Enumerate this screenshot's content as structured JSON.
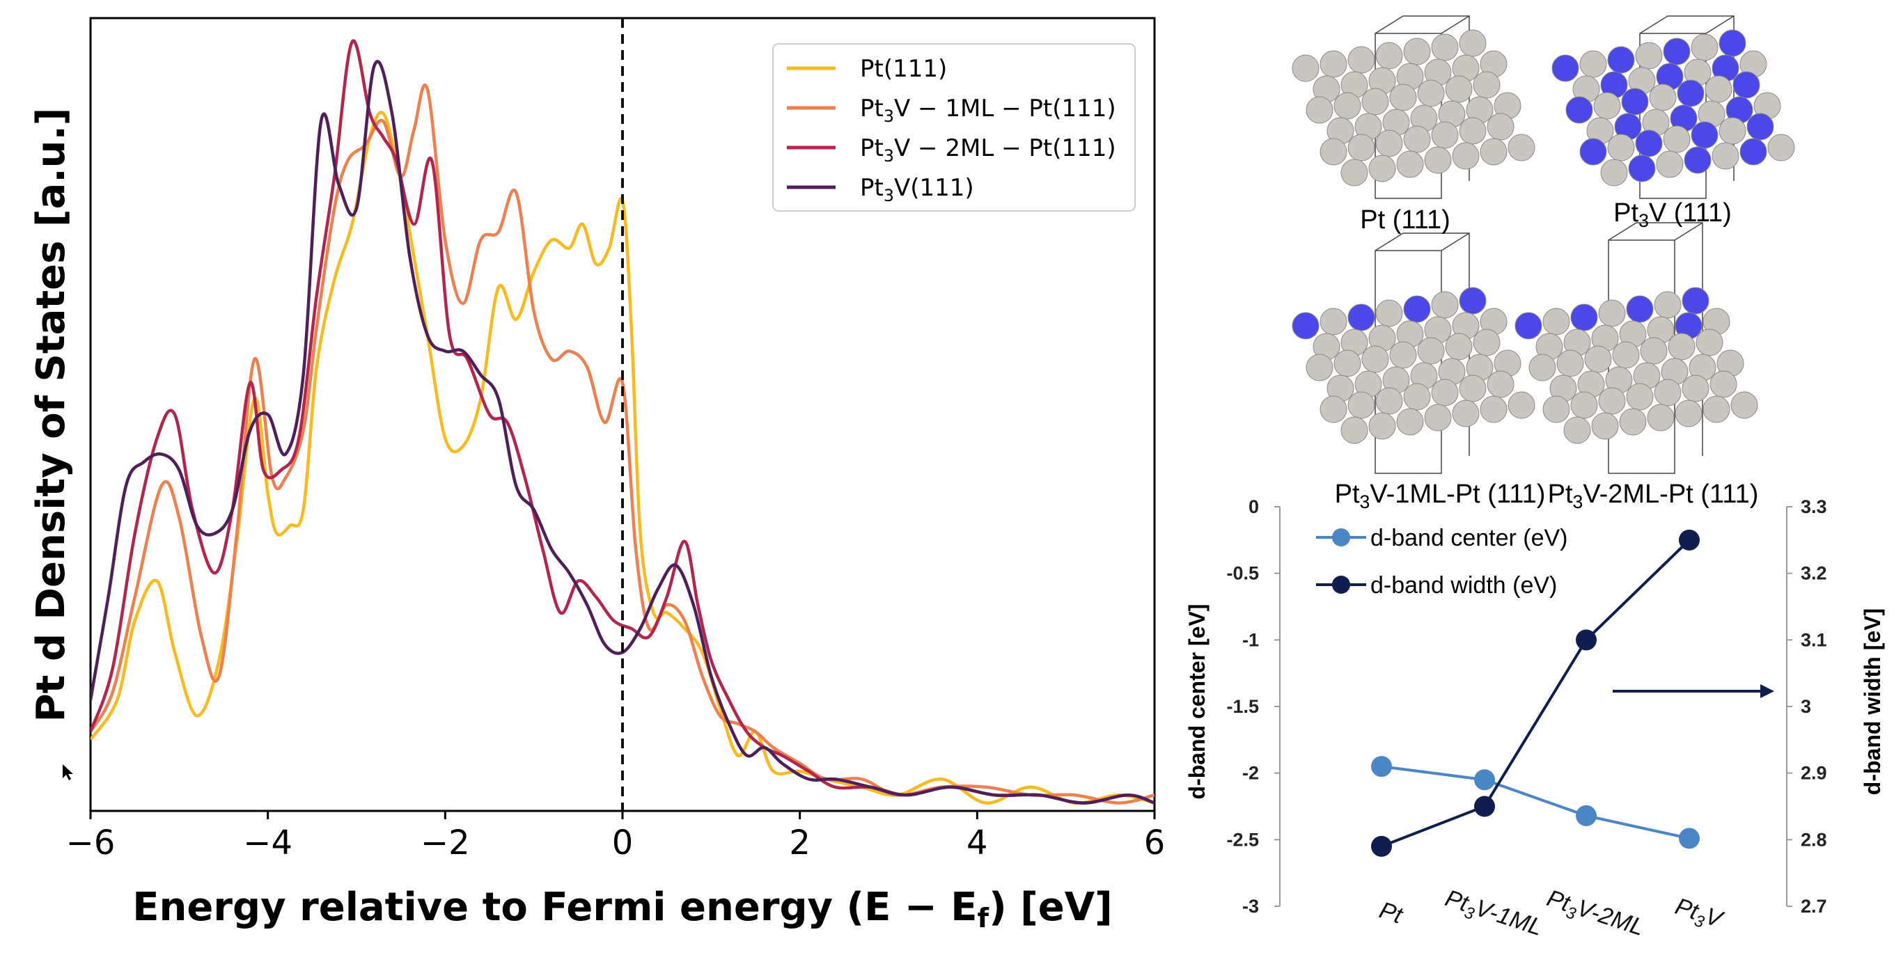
{
  "chart_data": [
    {
      "type": "line",
      "xlabel": "Energy relative to Fermi energy (E − Ef) [eV]",
      "xlabel_main": "Energy relative to Fermi energy (E − E",
      "xlabel_sub": "f",
      "xlabel_tail": ") [eV]",
      "ylabel": "Pt d Density of States [a.u.]",
      "xlim": [
        -6,
        6
      ],
      "ylim": [
        0,
        1
      ],
      "x_ticks": [
        -6,
        -4,
        -2,
        0,
        2,
        4,
        6
      ],
      "x_tick_labels": [
        "−6",
        "−4",
        "−2",
        "0",
        "2",
        "4",
        "6"
      ],
      "fermi_line_x": 0,
      "legend_position": "top-right",
      "series": [
        {
          "name": "Pt(111)",
          "legend_parts": [
            "Pt(111)"
          ],
          "color": "#F9BA20",
          "points": [
            [
              -6,
              0.09
            ],
            [
              -5.7,
              0.14
            ],
            [
              -5.5,
              0.24
            ],
            [
              -5.25,
              0.29
            ],
            [
              -5.05,
              0.2
            ],
            [
              -4.8,
              0.12
            ],
            [
              -4.55,
              0.19
            ],
            [
              -4.35,
              0.34
            ],
            [
              -4.15,
              0.52
            ],
            [
              -4,
              0.4
            ],
            [
              -3.9,
              0.35
            ],
            [
              -3.75,
              0.36
            ],
            [
              -3.6,
              0.38
            ],
            [
              -3.45,
              0.56
            ],
            [
              -3.25,
              0.67
            ],
            [
              -3.05,
              0.74
            ],
            [
              -2.85,
              0.85
            ],
            [
              -2.7,
              0.88
            ],
            [
              -2.55,
              0.82
            ],
            [
              -2.4,
              0.73
            ],
            [
              -2.2,
              0.6
            ],
            [
              -2,
              0.47
            ],
            [
              -1.8,
              0.46
            ],
            [
              -1.6,
              0.52
            ],
            [
              -1.4,
              0.66
            ],
            [
              -1.2,
              0.62
            ],
            [
              -1,
              0.68
            ],
            [
              -0.8,
              0.72
            ],
            [
              -0.6,
              0.71
            ],
            [
              -0.45,
              0.74
            ],
            [
              -0.3,
              0.69
            ],
            [
              -0.15,
              0.71
            ],
            [
              0,
              0.77
            ],
            [
              0.1,
              0.61
            ],
            [
              0.2,
              0.35
            ],
            [
              0.35,
              0.25
            ],
            [
              0.5,
              0.25
            ],
            [
              0.7,
              0.23
            ],
            [
              0.9,
              0.2
            ],
            [
              1.1,
              0.13
            ],
            [
              1.3,
              0.07
            ],
            [
              1.5,
              0.1
            ],
            [
              1.7,
              0.05
            ],
            [
              2,
              0.05
            ],
            [
              2.3,
              0.04
            ],
            [
              2.7,
              0.03
            ],
            [
              3.1,
              0.02
            ],
            [
              3.6,
              0.04
            ],
            [
              4.1,
              0.01
            ],
            [
              4.6,
              0.03
            ],
            [
              5.1,
              0.01
            ],
            [
              5.6,
              0.02
            ],
            [
              6,
              0.01
            ]
          ]
        },
        {
          "name": "Pt3V − 1ML − Pt(111)",
          "legend_parts": [
            "Pt",
            "3",
            "V − 1ML − Pt(111)"
          ],
          "color": "#EE7F4F",
          "points": [
            [
              -6,
              0.1
            ],
            [
              -5.75,
              0.15
            ],
            [
              -5.5,
              0.27
            ],
            [
              -5.2,
              0.41
            ],
            [
              -5,
              0.37
            ],
            [
              -4.75,
              0.22
            ],
            [
              -4.55,
              0.17
            ],
            [
              -4.35,
              0.35
            ],
            [
              -4.15,
              0.57
            ],
            [
              -3.95,
              0.42
            ],
            [
              -3.8,
              0.42
            ],
            [
              -3.6,
              0.48
            ],
            [
              -3.45,
              0.61
            ],
            [
              -3.25,
              0.76
            ],
            [
              -3.1,
              0.82
            ],
            [
              -2.9,
              0.84
            ],
            [
              -2.7,
              0.87
            ],
            [
              -2.5,
              0.8
            ],
            [
              -2.35,
              0.86
            ],
            [
              -2.2,
              0.91
            ],
            [
              -2,
              0.72
            ],
            [
              -1.8,
              0.64
            ],
            [
              -1.6,
              0.72
            ],
            [
              -1.4,
              0.73
            ],
            [
              -1.2,
              0.78
            ],
            [
              -1,
              0.63
            ],
            [
              -0.8,
              0.57
            ],
            [
              -0.6,
              0.58
            ],
            [
              -0.4,
              0.56
            ],
            [
              -0.2,
              0.49
            ],
            [
              0,
              0.54
            ],
            [
              0.15,
              0.33
            ],
            [
              0.3,
              0.23
            ],
            [
              0.5,
              0.26
            ],
            [
              0.7,
              0.24
            ],
            [
              0.9,
              0.17
            ],
            [
              1.1,
              0.12
            ],
            [
              1.3,
              0.11
            ],
            [
              1.5,
              0.1
            ],
            [
              1.7,
              0.08
            ],
            [
              2,
              0.06
            ],
            [
              2.3,
              0.04
            ],
            [
              2.7,
              0.04
            ],
            [
              3.1,
              0.02
            ],
            [
              3.6,
              0.03
            ],
            [
              4.1,
              0.03
            ],
            [
              4.6,
              0.02
            ],
            [
              5.1,
              0.02
            ],
            [
              5.6,
              0.01
            ],
            [
              6,
              0.02
            ]
          ]
        },
        {
          "name": "Pt3V − 2ML − Pt(111)",
          "legend_parts": [
            "Pt",
            "3",
            "V − 2ML − Pt(111)"
          ],
          "color": "#B2264E",
          "points": [
            [
              -6,
              0.1
            ],
            [
              -5.75,
              0.18
            ],
            [
              -5.5,
              0.35
            ],
            [
              -5.25,
              0.47
            ],
            [
              -5.05,
              0.5
            ],
            [
              -4.85,
              0.38
            ],
            [
              -4.6,
              0.3
            ],
            [
              -4.4,
              0.38
            ],
            [
              -4.2,
              0.54
            ],
            [
              -4.05,
              0.43
            ],
            [
              -3.85,
              0.43
            ],
            [
              -3.65,
              0.47
            ],
            [
              -3.45,
              0.65
            ],
            [
              -3.25,
              0.8
            ],
            [
              -3.05,
              0.97
            ],
            [
              -2.85,
              0.88
            ],
            [
              -2.7,
              0.85
            ],
            [
              -2.55,
              0.82
            ],
            [
              -2.35,
              0.74
            ],
            [
              -2.15,
              0.82
            ],
            [
              -1.95,
              0.6
            ],
            [
              -1.75,
              0.57
            ],
            [
              -1.5,
              0.5
            ],
            [
              -1.3,
              0.49
            ],
            [
              -1.1,
              0.42
            ],
            [
              -0.9,
              0.33
            ],
            [
              -0.7,
              0.25
            ],
            [
              -0.5,
              0.29
            ],
            [
              -0.3,
              0.27
            ],
            [
              -0.1,
              0.24
            ],
            [
              0.1,
              0.23
            ],
            [
              0.3,
              0.22
            ],
            [
              0.5,
              0.27
            ],
            [
              0.7,
              0.34
            ],
            [
              0.85,
              0.26
            ],
            [
              1,
              0.19
            ],
            [
              1.2,
              0.14
            ],
            [
              1.4,
              0.1
            ],
            [
              1.6,
              0.08
            ],
            [
              1.8,
              0.07
            ],
            [
              2.1,
              0.05
            ],
            [
              2.4,
              0.03
            ],
            [
              2.8,
              0.03
            ],
            [
              3.2,
              0.02
            ],
            [
              3.7,
              0.03
            ],
            [
              4.2,
              0.02
            ],
            [
              4.7,
              0.02
            ],
            [
              5.2,
              0.01
            ],
            [
              5.7,
              0.02
            ],
            [
              6,
              0.01
            ]
          ]
        },
        {
          "name": "Pt3V(111)",
          "legend_parts": [
            "Pt",
            "3",
            "V(111)"
          ],
          "color": "#4F1F5A",
          "points": [
            [
              -6,
              0.14
            ],
            [
              -5.8,
              0.27
            ],
            [
              -5.6,
              0.41
            ],
            [
              -5.4,
              0.44
            ],
            [
              -5.2,
              0.45
            ],
            [
              -5,
              0.43
            ],
            [
              -4.8,
              0.36
            ],
            [
              -4.6,
              0.35
            ],
            [
              -4.4,
              0.38
            ],
            [
              -4.2,
              0.48
            ],
            [
              -4,
              0.5
            ],
            [
              -3.8,
              0.45
            ],
            [
              -3.6,
              0.55
            ],
            [
              -3.4,
              0.87
            ],
            [
              -3.2,
              0.79
            ],
            [
              -3,
              0.76
            ],
            [
              -2.8,
              0.94
            ],
            [
              -2.6,
              0.88
            ],
            [
              -2.4,
              0.7
            ],
            [
              -2.2,
              0.6
            ],
            [
              -2,
              0.58
            ],
            [
              -1.8,
              0.58
            ],
            [
              -1.6,
              0.55
            ],
            [
              -1.4,
              0.52
            ],
            [
              -1.2,
              0.41
            ],
            [
              -1,
              0.38
            ],
            [
              -0.8,
              0.33
            ],
            [
              -0.6,
              0.3
            ],
            [
              -0.4,
              0.26
            ],
            [
              -0.2,
              0.21
            ],
            [
              0,
              0.2
            ],
            [
              0.2,
              0.23
            ],
            [
              0.4,
              0.28
            ],
            [
              0.6,
              0.31
            ],
            [
              0.8,
              0.26
            ],
            [
              1,
              0.17
            ],
            [
              1.2,
              0.11
            ],
            [
              1.4,
              0.07
            ],
            [
              1.6,
              0.08
            ],
            [
              1.8,
              0.06
            ],
            [
              2.1,
              0.04
            ],
            [
              2.4,
              0.04
            ],
            [
              2.8,
              0.03
            ],
            [
              3.2,
              0.02
            ],
            [
              3.7,
              0.03
            ],
            [
              4.2,
              0.02
            ],
            [
              4.7,
              0.02
            ],
            [
              5.2,
              0.01
            ],
            [
              5.7,
              0.02
            ],
            [
              6,
              0.01
            ]
          ]
        }
      ]
    },
    {
      "type": "line",
      "categories": [
        {
          "label": "Pt",
          "parts": [
            "Pt"
          ]
        },
        {
          "label": "Pt3V-1ML",
          "parts": [
            "Pt",
            "3",
            "V-1ML"
          ]
        },
        {
          "label": "Pt3V-2ML",
          "parts": [
            "Pt",
            "3",
            "V-2ML"
          ]
        },
        {
          "label": "Pt3V",
          "parts": [
            "Pt",
            "3",
            "V"
          ]
        }
      ],
      "ylabel_left": "d-band center [eV]",
      "ylabel_right": "d-band width [eV]",
      "ylim_left": [
        -3,
        0
      ],
      "ylim_right": [
        2.7,
        3.3
      ],
      "left_ticks": [
        0,
        -0.5,
        -1,
        -1.5,
        -2,
        -2.5,
        -3
      ],
      "left_tick_labels": [
        "0",
        "-0.5",
        "-1",
        "-1.5",
        "-2",
        "-2.5",
        "-3"
      ],
      "right_ticks": [
        3.3,
        3.2,
        3.1,
        3,
        2.9,
        2.8,
        2.7
      ],
      "right_tick_labels": [
        "3.3",
        "3.2",
        "3.1",
        "3",
        "2.9",
        "2.8",
        "2.7"
      ],
      "legend_position": "top-left",
      "arrow_points_to": "right-axis",
      "series": [
        {
          "name": "d-band center (eV)",
          "axis": "left",
          "color": "#4A86C5",
          "values": [
            -1.95,
            -2.05,
            -2.32,
            -2.49
          ]
        },
        {
          "name": "d-band width (eV)",
          "axis": "right",
          "color": "#0F1E4E",
          "values": [
            2.79,
            2.85,
            3.1,
            3.25
          ]
        }
      ]
    }
  ],
  "structures": [
    {
      "id": "pt111",
      "caption_parts": [
        "Pt (111)"
      ],
      "vanadium": "none"
    },
    {
      "id": "pt3v111",
      "caption_parts": [
        "Pt",
        "3",
        "V (111)"
      ],
      "vanadium": "bulk"
    },
    {
      "id": "pt3v1ml",
      "caption_parts": [
        "Pt",
        "3",
        "V-1ML-Pt (111)"
      ],
      "vanadium": "top-row"
    },
    {
      "id": "pt3v2ml",
      "caption_parts": [
        "Pt",
        "3",
        "V-2ML-Pt (111)"
      ],
      "vanadium": "top-rows"
    }
  ],
  "colors": {
    "platinum_atom": "#C9C5C0",
    "vanadium_atom": "#4B48E8",
    "fermi_line": "#111111"
  }
}
